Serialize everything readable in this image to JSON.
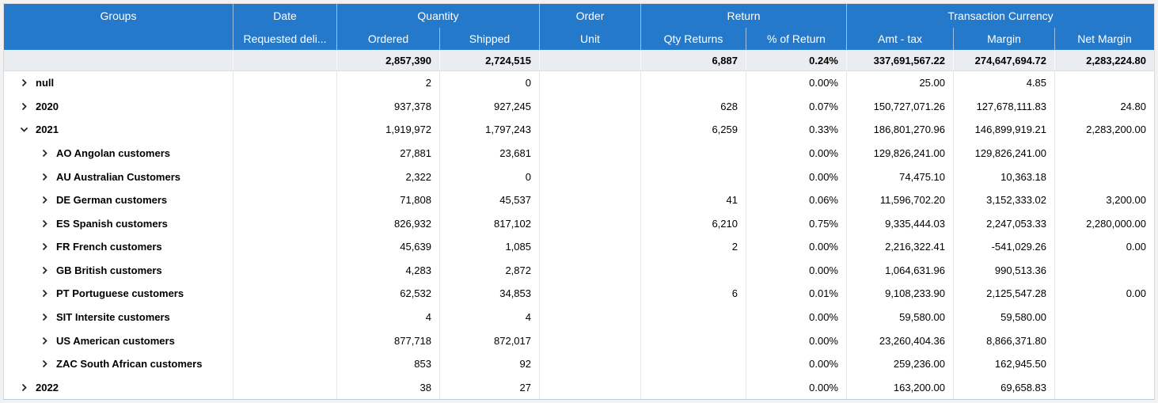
{
  "colors": {
    "header_bg": "#2479ca",
    "header_text": "#ffffff",
    "summary_bg": "#e9edf1",
    "summary_text": "#1b6fc3",
    "body_text": "#000000",
    "grid_line": "#e3e6ea"
  },
  "icons": {
    "collapsed": "chevron-right-icon",
    "expanded": "chevron-down-icon"
  },
  "header": {
    "groups": "Groups",
    "date": {
      "group": "Date",
      "sub": "Requested deli..."
    },
    "quantity": {
      "group": "Quantity",
      "subs": [
        "Ordered",
        "Shipped"
      ]
    },
    "order": {
      "group": "Order",
      "sub": "Unit"
    },
    "return": {
      "group": "Return",
      "subs": [
        "Qty Returns",
        "% of Return"
      ]
    },
    "transaction_currency": {
      "group": "Transaction Currency",
      "subs": [
        "Amt - tax",
        "Margin",
        "Net Margin"
      ]
    }
  },
  "summary": {
    "ordered": "2,857,390",
    "shipped": "2,724,515",
    "order_unit": "",
    "qty_returns": "6,887",
    "pct_return": "0.24%",
    "amt_tax": "337,691,567.22",
    "margin": "274,647,694.72",
    "net_margin": "2,283,224.80"
  },
  "rows": [
    {
      "label": "null",
      "level": 0,
      "expanded": false,
      "date": "",
      "ordered": "2",
      "shipped": "0",
      "order_unit": "",
      "qty_returns": "",
      "pct_return": "0.00%",
      "amt_tax": "25.00",
      "margin": "4.85",
      "net_margin": ""
    },
    {
      "label": "2020",
      "level": 0,
      "expanded": false,
      "date": "",
      "ordered": "937,378",
      "shipped": "927,245",
      "order_unit": "",
      "qty_returns": "628",
      "pct_return": "0.07%",
      "amt_tax": "150,727,071.26",
      "margin": "127,678,111.83",
      "net_margin": "24.80"
    },
    {
      "label": "2021",
      "level": 0,
      "expanded": true,
      "date": "",
      "ordered": "1,919,972",
      "shipped": "1,797,243",
      "order_unit": "",
      "qty_returns": "6,259",
      "pct_return": "0.33%",
      "amt_tax": "186,801,270.96",
      "margin": "146,899,919.21",
      "net_margin": "2,283,200.00"
    },
    {
      "label": "AO Angolan customers",
      "level": 1,
      "expanded": false,
      "date": "",
      "ordered": "27,881",
      "shipped": "23,681",
      "order_unit": "",
      "qty_returns": "",
      "pct_return": "0.00%",
      "amt_tax": "129,826,241.00",
      "margin": "129,826,241.00",
      "net_margin": ""
    },
    {
      "label": "AU Australian Customers",
      "level": 1,
      "expanded": false,
      "date": "",
      "ordered": "2,322",
      "shipped": "0",
      "order_unit": "",
      "qty_returns": "",
      "pct_return": "0.00%",
      "amt_tax": "74,475.10",
      "margin": "10,363.18",
      "net_margin": ""
    },
    {
      "label": "DE German customers",
      "level": 1,
      "expanded": false,
      "date": "",
      "ordered": "71,808",
      "shipped": "45,537",
      "order_unit": "",
      "qty_returns": "41",
      "pct_return": "0.06%",
      "amt_tax": "11,596,702.20",
      "margin": "3,152,333.02",
      "net_margin": "3,200.00"
    },
    {
      "label": "ES Spanish customers",
      "level": 1,
      "expanded": false,
      "date": "",
      "ordered": "826,932",
      "shipped": "817,102",
      "order_unit": "",
      "qty_returns": "6,210",
      "pct_return": "0.75%",
      "amt_tax": "9,335,444.03",
      "margin": "2,247,053.33",
      "net_margin": "2,280,000.00"
    },
    {
      "label": "FR French customers",
      "level": 1,
      "expanded": false,
      "date": "",
      "ordered": "45,639",
      "shipped": "1,085",
      "order_unit": "",
      "qty_returns": "2",
      "pct_return": "0.00%",
      "amt_tax": "2,216,322.41",
      "margin": "-541,029.26",
      "net_margin": "0.00"
    },
    {
      "label": "GB British customers",
      "level": 1,
      "expanded": false,
      "date": "",
      "ordered": "4,283",
      "shipped": "2,872",
      "order_unit": "",
      "qty_returns": "",
      "pct_return": "0.00%",
      "amt_tax": "1,064,631.96",
      "margin": "990,513.36",
      "net_margin": ""
    },
    {
      "label": "PT Portuguese customers",
      "level": 1,
      "expanded": false,
      "date": "",
      "ordered": "62,532",
      "shipped": "34,853",
      "order_unit": "",
      "qty_returns": "6",
      "pct_return": "0.01%",
      "amt_tax": "9,108,233.90",
      "margin": "2,125,547.28",
      "net_margin": "0.00"
    },
    {
      "label": "SIT Intersite customers",
      "level": 1,
      "expanded": false,
      "date": "",
      "ordered": "4",
      "shipped": "4",
      "order_unit": "",
      "qty_returns": "",
      "pct_return": "0.00%",
      "amt_tax": "59,580.00",
      "margin": "59,580.00",
      "net_margin": ""
    },
    {
      "label": "US American customers",
      "level": 1,
      "expanded": false,
      "date": "",
      "ordered": "877,718",
      "shipped": "872,017",
      "order_unit": "",
      "qty_returns": "",
      "pct_return": "0.00%",
      "amt_tax": "23,260,404.36",
      "margin": "8,866,371.80",
      "net_margin": ""
    },
    {
      "label": "ZAC South African customers",
      "level": 1,
      "expanded": false,
      "date": "",
      "ordered": "853",
      "shipped": "92",
      "order_unit": "",
      "qty_returns": "",
      "pct_return": "0.00%",
      "amt_tax": "259,236.00",
      "margin": "162,945.50",
      "net_margin": ""
    },
    {
      "label": "2022",
      "level": 0,
      "expanded": false,
      "date": "",
      "ordered": "38",
      "shipped": "27",
      "order_unit": "",
      "qty_returns": "",
      "pct_return": "0.00%",
      "amt_tax": "163,200.00",
      "margin": "69,658.83",
      "net_margin": ""
    }
  ]
}
